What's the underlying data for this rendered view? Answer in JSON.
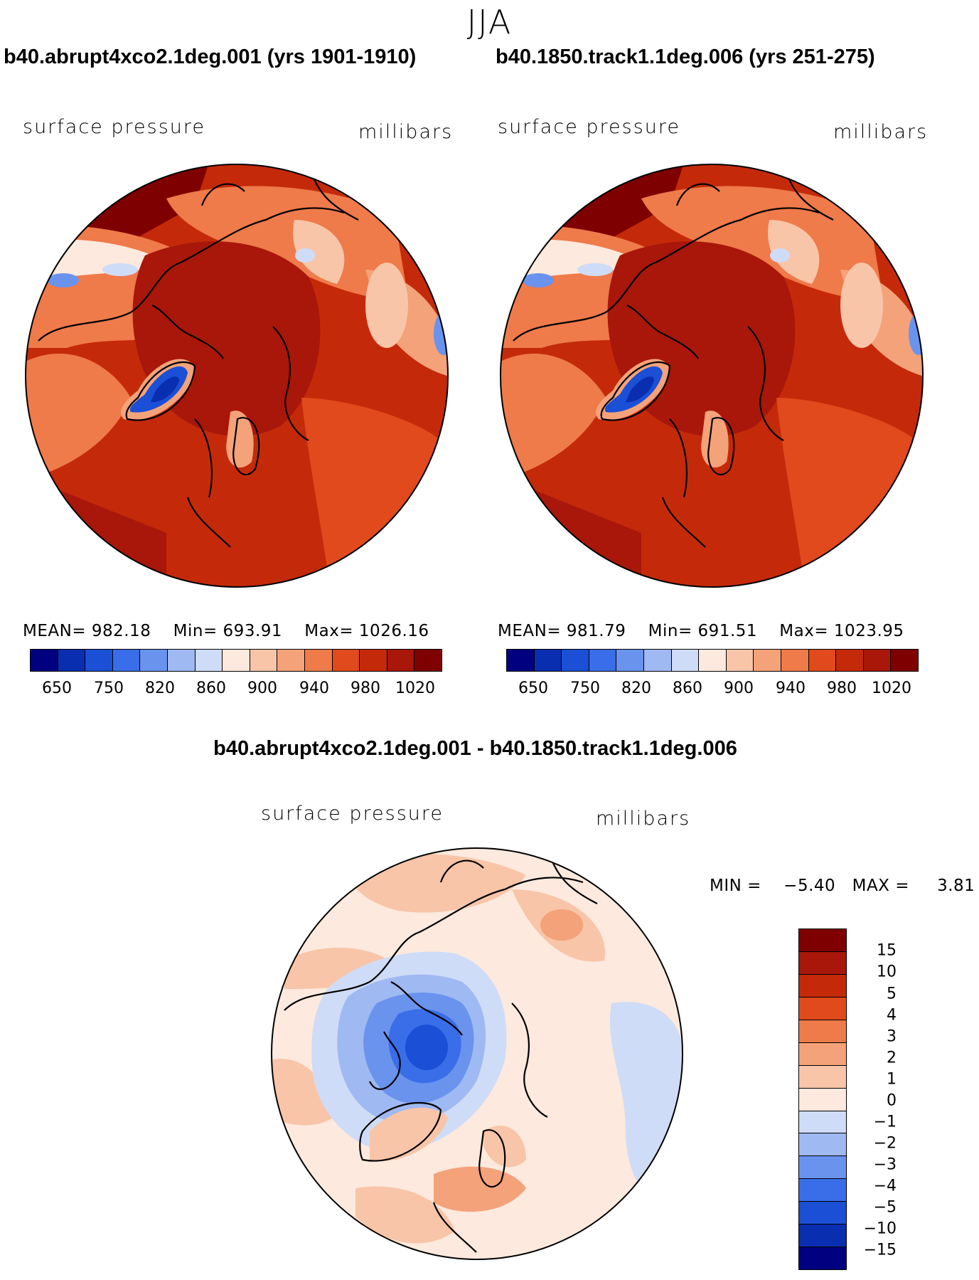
{
  "season": "JJA",
  "panels": [
    {
      "title": "b40.abrupt4xco2.1deg.001 (yrs 1901-1910)",
      "variable": "surface pressure",
      "units": "millibars",
      "stats": {
        "mean_label": "MEAN=",
        "mean": "982.18",
        "min_label": "Min=",
        "min": "693.91",
        "max_label": "Max=",
        "max": "1026.16"
      },
      "colorbar_ticks": [
        "650",
        "750",
        "820",
        "860",
        "900",
        "940",
        "980",
        "1020"
      ]
    },
    {
      "title": "b40.1850.track1.1deg.006 (yrs 251-275)",
      "variable": "surface pressure",
      "units": "millibars",
      "stats": {
        "mean_label": "MEAN=",
        "mean": "981.79",
        "min_label": "Min=",
        "min": "691.51",
        "max_label": "Max=",
        "max": "1023.95"
      },
      "colorbar_ticks": [
        "650",
        "750",
        "820",
        "860",
        "900",
        "940",
        "980",
        "1020"
      ]
    }
  ],
  "difference": {
    "title": "b40.abrupt4xco2.1deg.001 - b40.1850.track1.1deg.006",
    "variable": "surface pressure",
    "units": "millibars",
    "min_label": "MIN =",
    "min": "−5.40",
    "max_label": "MAX =",
    "max": "3.81",
    "colorbar_ticks": [
      "15",
      "10",
      "5",
      "4",
      "3",
      "2",
      "1",
      "0",
      "−1",
      "−2",
      "−3",
      "−4",
      "−5",
      "−10",
      "−15"
    ]
  },
  "colors": {
    "abs_colorbar": [
      "#000080",
      "#0a2eb0",
      "#1a4fd6",
      "#3a6ee8",
      "#6a93ee",
      "#9fb9f2",
      "#cfdcf7",
      "#fde9dd",
      "#f8c5a9",
      "#f4a27a",
      "#ef7a4a",
      "#e04a1c",
      "#c42a0a",
      "#a8170a",
      "#7f0000"
    ],
    "diff_colorbar": [
      "#7f0000",
      "#a8170a",
      "#c42a0a",
      "#e04a1c",
      "#ef7a4a",
      "#f4a27a",
      "#f8c5a9",
      "#fde9dd",
      "#cfdcf7",
      "#9fb9f2",
      "#6a93ee",
      "#3a6ee8",
      "#1a4fd6",
      "#0a2eb0",
      "#000080"
    ],
    "abs_base": "#c42a0a",
    "abs_ocean_arctic": "#a8170a",
    "diff_base": "#fde9dd"
  }
}
